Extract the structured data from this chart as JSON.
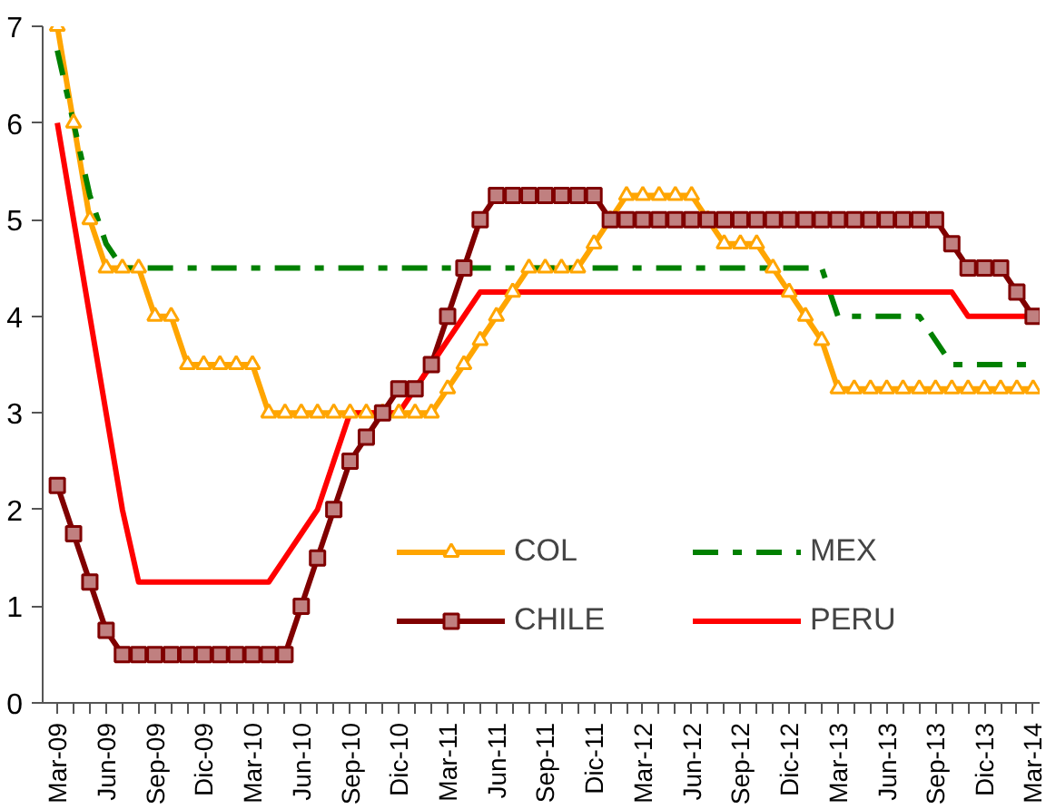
{
  "chart_data": {
    "type": "line",
    "categories": [
      "Mar-09",
      null,
      null,
      "Jun-09",
      null,
      null,
      "Sep-09",
      null,
      null,
      "Dic-09",
      null,
      null,
      "Mar-10",
      null,
      null,
      "Jun-10",
      null,
      null,
      "Sep-10",
      null,
      null,
      "Dic-10",
      null,
      null,
      "Mar-11",
      null,
      null,
      "Jun-11",
      null,
      null,
      "Sep-11",
      null,
      null,
      "Dic-11",
      null,
      null,
      "Mar-12",
      null,
      null,
      "Jun-12",
      null,
      null,
      "Sep-12",
      null,
      null,
      "Dic-12",
      null,
      null,
      "Mar-13",
      null,
      null,
      "Jun-13",
      null,
      null,
      "Sep-13",
      null,
      null,
      "Dic-13",
      null,
      null,
      "Mar-14"
    ],
    "ylim": [
      0,
      7
    ],
    "yticks": [
      0,
      1,
      2,
      3,
      4,
      5,
      6,
      7
    ],
    "legend": "bottom right",
    "series": [
      {
        "name": "COL",
        "color": "#ffa500",
        "marker": "triangle",
        "line_style": "solid",
        "values": [
          7,
          6,
          5,
          4.5,
          4.5,
          4.5,
          4,
          4,
          3.5,
          3.5,
          3.5,
          3.5,
          3.5,
          3,
          3,
          3,
          3,
          3,
          3,
          3,
          3,
          3,
          3,
          3,
          3.25,
          3.5,
          3.75,
          4,
          4.25,
          4.5,
          4.5,
          4.5,
          4.5,
          4.75,
          5,
          5.25,
          5.25,
          5.25,
          5.25,
          5.25,
          5,
          4.75,
          4.75,
          4.75,
          4.5,
          4.25,
          4,
          3.75,
          3.25,
          3.25,
          3.25,
          3.25,
          3.25,
          3.25,
          3.25,
          3.25,
          3.25,
          3.25,
          3.25,
          3.25,
          3.25
        ]
      },
      {
        "name": "MEX",
        "color": "#008000",
        "marker": "none",
        "line_style": "dashed",
        "values": [
          6.75,
          6,
          5.25,
          4.75,
          4.5,
          4.5,
          4.5,
          4.5,
          4.5,
          4.5,
          4.5,
          4.5,
          4.5,
          4.5,
          4.5,
          4.5,
          4.5,
          4.5,
          4.5,
          4.5,
          4.5,
          4.5,
          4.5,
          4.5,
          4.5,
          4.5,
          4.5,
          4.5,
          4.5,
          4.5,
          4.5,
          4.5,
          4.5,
          4.5,
          4.5,
          4.5,
          4.5,
          4.5,
          4.5,
          4.5,
          4.5,
          4.5,
          4.5,
          4.5,
          4.5,
          4.5,
          4.5,
          4.5,
          4,
          4,
          4,
          4,
          4,
          4,
          3.75,
          3.5,
          3.5,
          3.5,
          3.5,
          3.5,
          3.5
        ]
      },
      {
        "name": "CHILE",
        "color": "#800000",
        "marker": "square",
        "line_style": "solid",
        "values": [
          2.25,
          1.75,
          1.25,
          0.75,
          0.5,
          0.5,
          0.5,
          0.5,
          0.5,
          0.5,
          0.5,
          0.5,
          0.5,
          0.5,
          0.5,
          1,
          1.5,
          2,
          2.5,
          2.75,
          3,
          3.25,
          3.25,
          3.5,
          4,
          4.5,
          5,
          5.25,
          5.25,
          5.25,
          5.25,
          5.25,
          5.25,
          5.25,
          5,
          5,
          5,
          5,
          5,
          5,
          5,
          5,
          5,
          5,
          5,
          5,
          5,
          5,
          5,
          5,
          5,
          5,
          5,
          5,
          5,
          4.75,
          4.5,
          4.5,
          4.5,
          4.25,
          4
        ]
      },
      {
        "name": "PERU",
        "color": "#ff0000",
        "marker": "none",
        "line_style": "solid",
        "values": [
          6,
          5,
          4,
          3,
          2,
          1.25,
          1.25,
          1.25,
          1.25,
          1.25,
          1.25,
          1.25,
          1.25,
          1.25,
          1.5,
          1.75,
          2,
          2.5,
          3,
          3,
          3,
          3,
          3.25,
          3.5,
          3.75,
          4,
          4.25,
          4.25,
          4.25,
          4.25,
          4.25,
          4.25,
          4.25,
          4.25,
          4.25,
          4.25,
          4.25,
          4.25,
          4.25,
          4.25,
          4.25,
          4.25,
          4.25,
          4.25,
          4.25,
          4.25,
          4.25,
          4.25,
          4.25,
          4.25,
          4.25,
          4.25,
          4.25,
          4.25,
          4.25,
          4.25,
          4,
          4,
          4,
          4,
          4
        ]
      }
    ]
  }
}
